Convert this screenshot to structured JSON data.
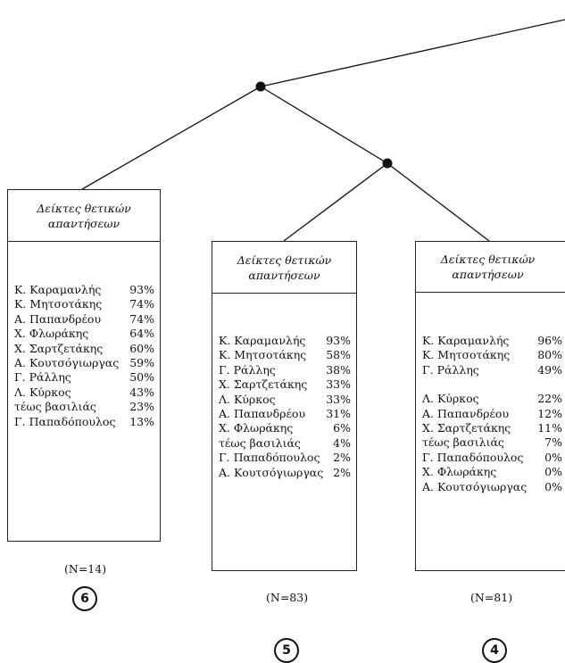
{
  "clusters": [
    {
      "header": [
        "Δείκτες θετικών",
        "απαντήσεων"
      ],
      "rows": [
        {
          "name": "Κ. Καραμανλής",
          "pct": "93%"
        },
        {
          "name": "Κ. Μητσοτάκης",
          "pct": "74%"
        },
        {
          "name": "Α. Παπανδρέου",
          "pct": "74%"
        },
        {
          "name": "Χ. Φλωράκης",
          "pct": "64%"
        },
        {
          "name": "Χ. Σαρτζετάκης",
          "pct": "60%"
        },
        {
          "name": "Α. Κουτσόγιωργας",
          "pct": "59%"
        },
        {
          "name": "Γ. Ράλλης",
          "pct": "50%"
        },
        {
          "name": "Λ. Κύρκος",
          "pct": "43%"
        },
        {
          "name": "τέως βασιλιάς",
          "pct": "23%"
        },
        {
          "name": "Γ. Παπαδόπουλος",
          "pct": "13%"
        }
      ],
      "n_label": "(N=14)",
      "number": "6"
    },
    {
      "header": [
        "Δείκτες θετικών",
        "απαντήσεων"
      ],
      "rows": [
        {
          "name": "Κ. Καραμανλής",
          "pct": "93%"
        },
        {
          "name": "Κ. Μητσοτάκης",
          "pct": "58%"
        },
        {
          "name": "Γ. Ράλλης",
          "pct": "38%"
        },
        {
          "name": "Χ. Σαρτζετάκης",
          "pct": "33%"
        },
        {
          "name": "Λ. Κύρκος",
          "pct": "33%"
        },
        {
          "name": "Α. Παπανδρέου",
          "pct": "31%"
        },
        {
          "name": "Χ. Φλωράκης",
          "pct": "6%"
        },
        {
          "name": "τέως βασιλιάς",
          "pct": "4%"
        },
        {
          "name": "Γ. Παπαδόπουλος",
          "pct": "2%"
        },
        {
          "name": "Α. Κουτσόγιωργας",
          "pct": "2%"
        }
      ],
      "n_label": "(N=83)",
      "number": "5"
    },
    {
      "header": [
        "Δείκτες θετικών",
        "απαντήσεων"
      ],
      "rows": [
        {
          "name": "Κ. Καραμανλής",
          "pct": "96%"
        },
        {
          "name": "Κ. Μητσοτάκης",
          "pct": "80%"
        },
        {
          "name": "Γ. Ράλλης",
          "pct": "49%"
        },
        {
          "name": "Λ. Κύρκος",
          "pct": "22%"
        },
        {
          "name": "Α. Παπανδρέου",
          "pct": "12%"
        },
        {
          "name": "Χ. Σαρτζετάκης",
          "pct": "11%"
        },
        {
          "name": "τέως βασιλιάς",
          "pct": "7%"
        },
        {
          "name": "Γ. Παπαδόπουλος",
          "pct": "0%"
        },
        {
          "name": "Χ. Φλωράκης",
          "pct": "0%"
        },
        {
          "name": "Α. Κουτσόγιωργας",
          "pct": "0%"
        }
      ],
      "n_label": "(N=81)",
      "number": "4"
    }
  ]
}
